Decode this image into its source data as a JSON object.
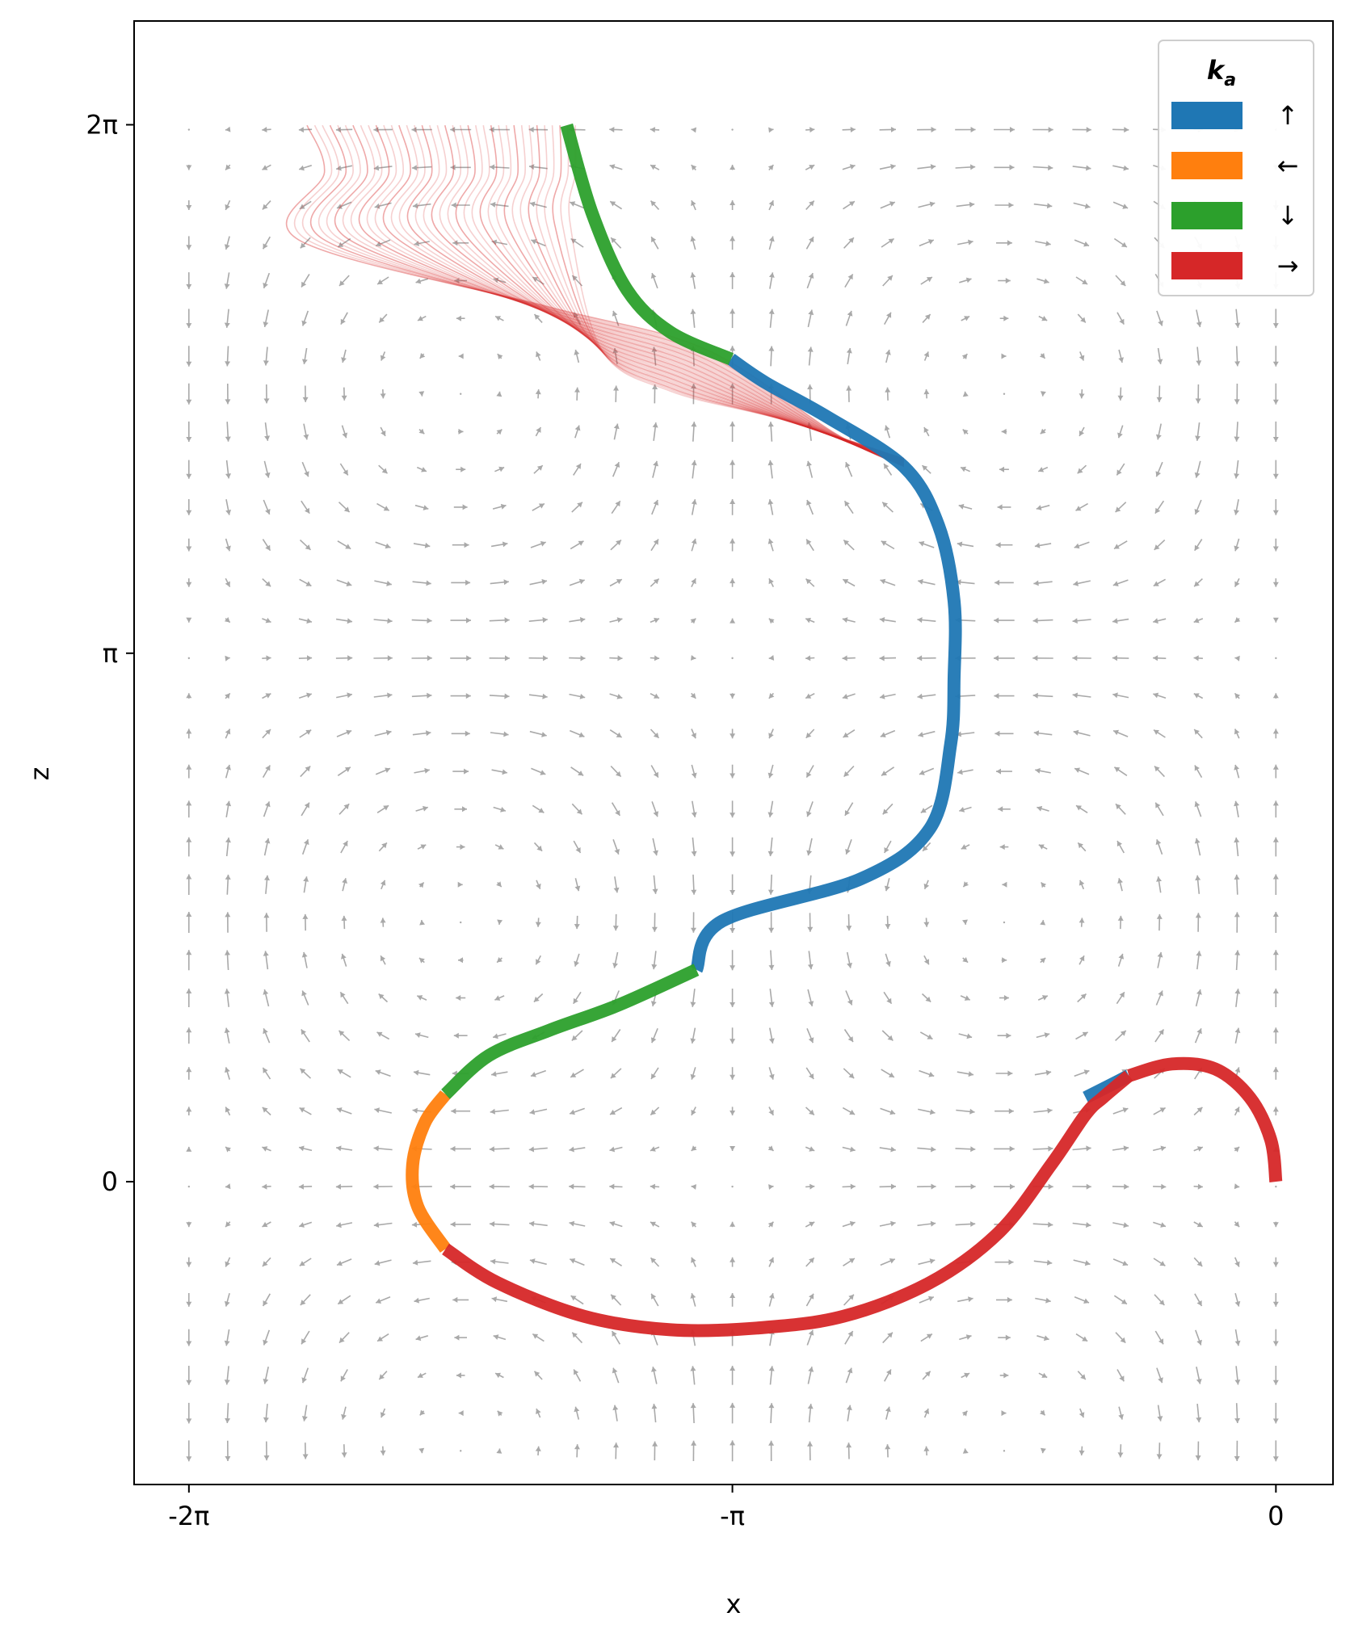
{
  "chart_data": {
    "type": "line",
    "title": "",
    "xlabel": "x",
    "ylabel": "z",
    "xlim": [
      -6.6,
      0.33
    ],
    "ylim": [
      -1.8,
      6.9
    ],
    "x_ticks": [
      {
        "value": -6.2832,
        "label": "-2π"
      },
      {
        "value": -3.1416,
        "label": "-π"
      },
      {
        "value": 0,
        "label": "0"
      }
    ],
    "y_ticks": [
      {
        "value": 0,
        "label": "0"
      },
      {
        "value": 3.1416,
        "label": "π"
      },
      {
        "value": 6.2832,
        "label": "2π"
      }
    ],
    "grid": false,
    "background_field": {
      "type": "quiver",
      "color": "#a9a9a9",
      "description_function": "u = -sin(x)cos(z), w = cos(x)sin(z) cellular flow"
    },
    "legend": {
      "title": "k",
      "title_subscript": "a",
      "position": "top-right",
      "entries": [
        {
          "label": "↑",
          "color": "#1f77b4"
        },
        {
          "label": "←",
          "color": "#ff7f0e"
        },
        {
          "label": "↓",
          "color": "#2ca02c"
        },
        {
          "label": "→",
          "color": "#d62728"
        }
      ]
    },
    "series": [
      {
        "label": "↑",
        "color": "#1f77b4",
        "segments": [
          [
            [
              -0.85,
              0.63
            ],
            [
              -1.1,
              0.5
            ]
          ],
          [
            [
              -3.15,
              4.89
            ],
            [
              -2.95,
              4.75
            ],
            [
              -2.6,
              4.55
            ],
            [
              -2.15,
              4.25
            ],
            [
              -1.95,
              3.9
            ],
            [
              -1.86,
              3.45
            ],
            [
              -1.86,
              3.0
            ],
            [
              -1.88,
              2.6
            ],
            [
              -2.0,
              2.1
            ],
            [
              -2.4,
              1.8
            ],
            [
              -3.2,
              1.55
            ],
            [
              -3.35,
              1.26
            ]
          ]
        ]
      },
      {
        "label": "←",
        "color": "#ff7f0e",
        "segments": [
          [
            [
              -4.8,
              0.52
            ],
            [
              -4.92,
              0.35
            ],
            [
              -4.99,
              0.1
            ],
            [
              -4.96,
              -0.15
            ],
            [
              -4.8,
              -0.4
            ]
          ]
        ]
      },
      {
        "label": "↓",
        "color": "#2ca02c",
        "segments": [
          [
            [
              -3.35,
              1.26
            ],
            [
              -3.8,
              1.05
            ],
            [
              -4.2,
              0.9
            ],
            [
              -4.55,
              0.75
            ],
            [
              -4.8,
              0.52
            ]
          ],
          [
            [
              -3.15,
              4.89
            ],
            [
              -3.5,
              5.05
            ],
            [
              -3.75,
              5.3
            ],
            [
              -3.95,
              5.75
            ],
            [
              -4.1,
              6.28
            ]
          ]
        ]
      },
      {
        "label": "→",
        "color": "#d62728",
        "segments": [
          [
            [
              -4.8,
              -0.4
            ],
            [
              -4.5,
              -0.6
            ],
            [
              -4.0,
              -0.8
            ],
            [
              -3.5,
              -0.88
            ],
            [
              -3.0,
              -0.87
            ],
            [
              -2.5,
              -0.8
            ],
            [
              -2.0,
              -0.6
            ],
            [
              -1.6,
              -0.3
            ],
            [
              -1.3,
              0.1
            ],
            [
              -1.1,
              0.4
            ],
            [
              -1.0,
              0.5
            ],
            [
              -0.85,
              0.63
            ]
          ],
          [
            [
              -0.85,
              0.63
            ],
            [
              -0.6,
              0.7
            ],
            [
              -0.35,
              0.67
            ],
            [
              -0.15,
              0.5
            ],
            [
              -0.03,
              0.25
            ],
            [
              0.0,
              0.0
            ]
          ]
        ]
      }
    ],
    "faint_bundle": {
      "color": "#d62728",
      "description_function": "many semi-transparent trajectories diverging from the main path near z≈4.5 toward the top edge z=2π between x≈-5.6 and x≈-4.0"
    }
  }
}
